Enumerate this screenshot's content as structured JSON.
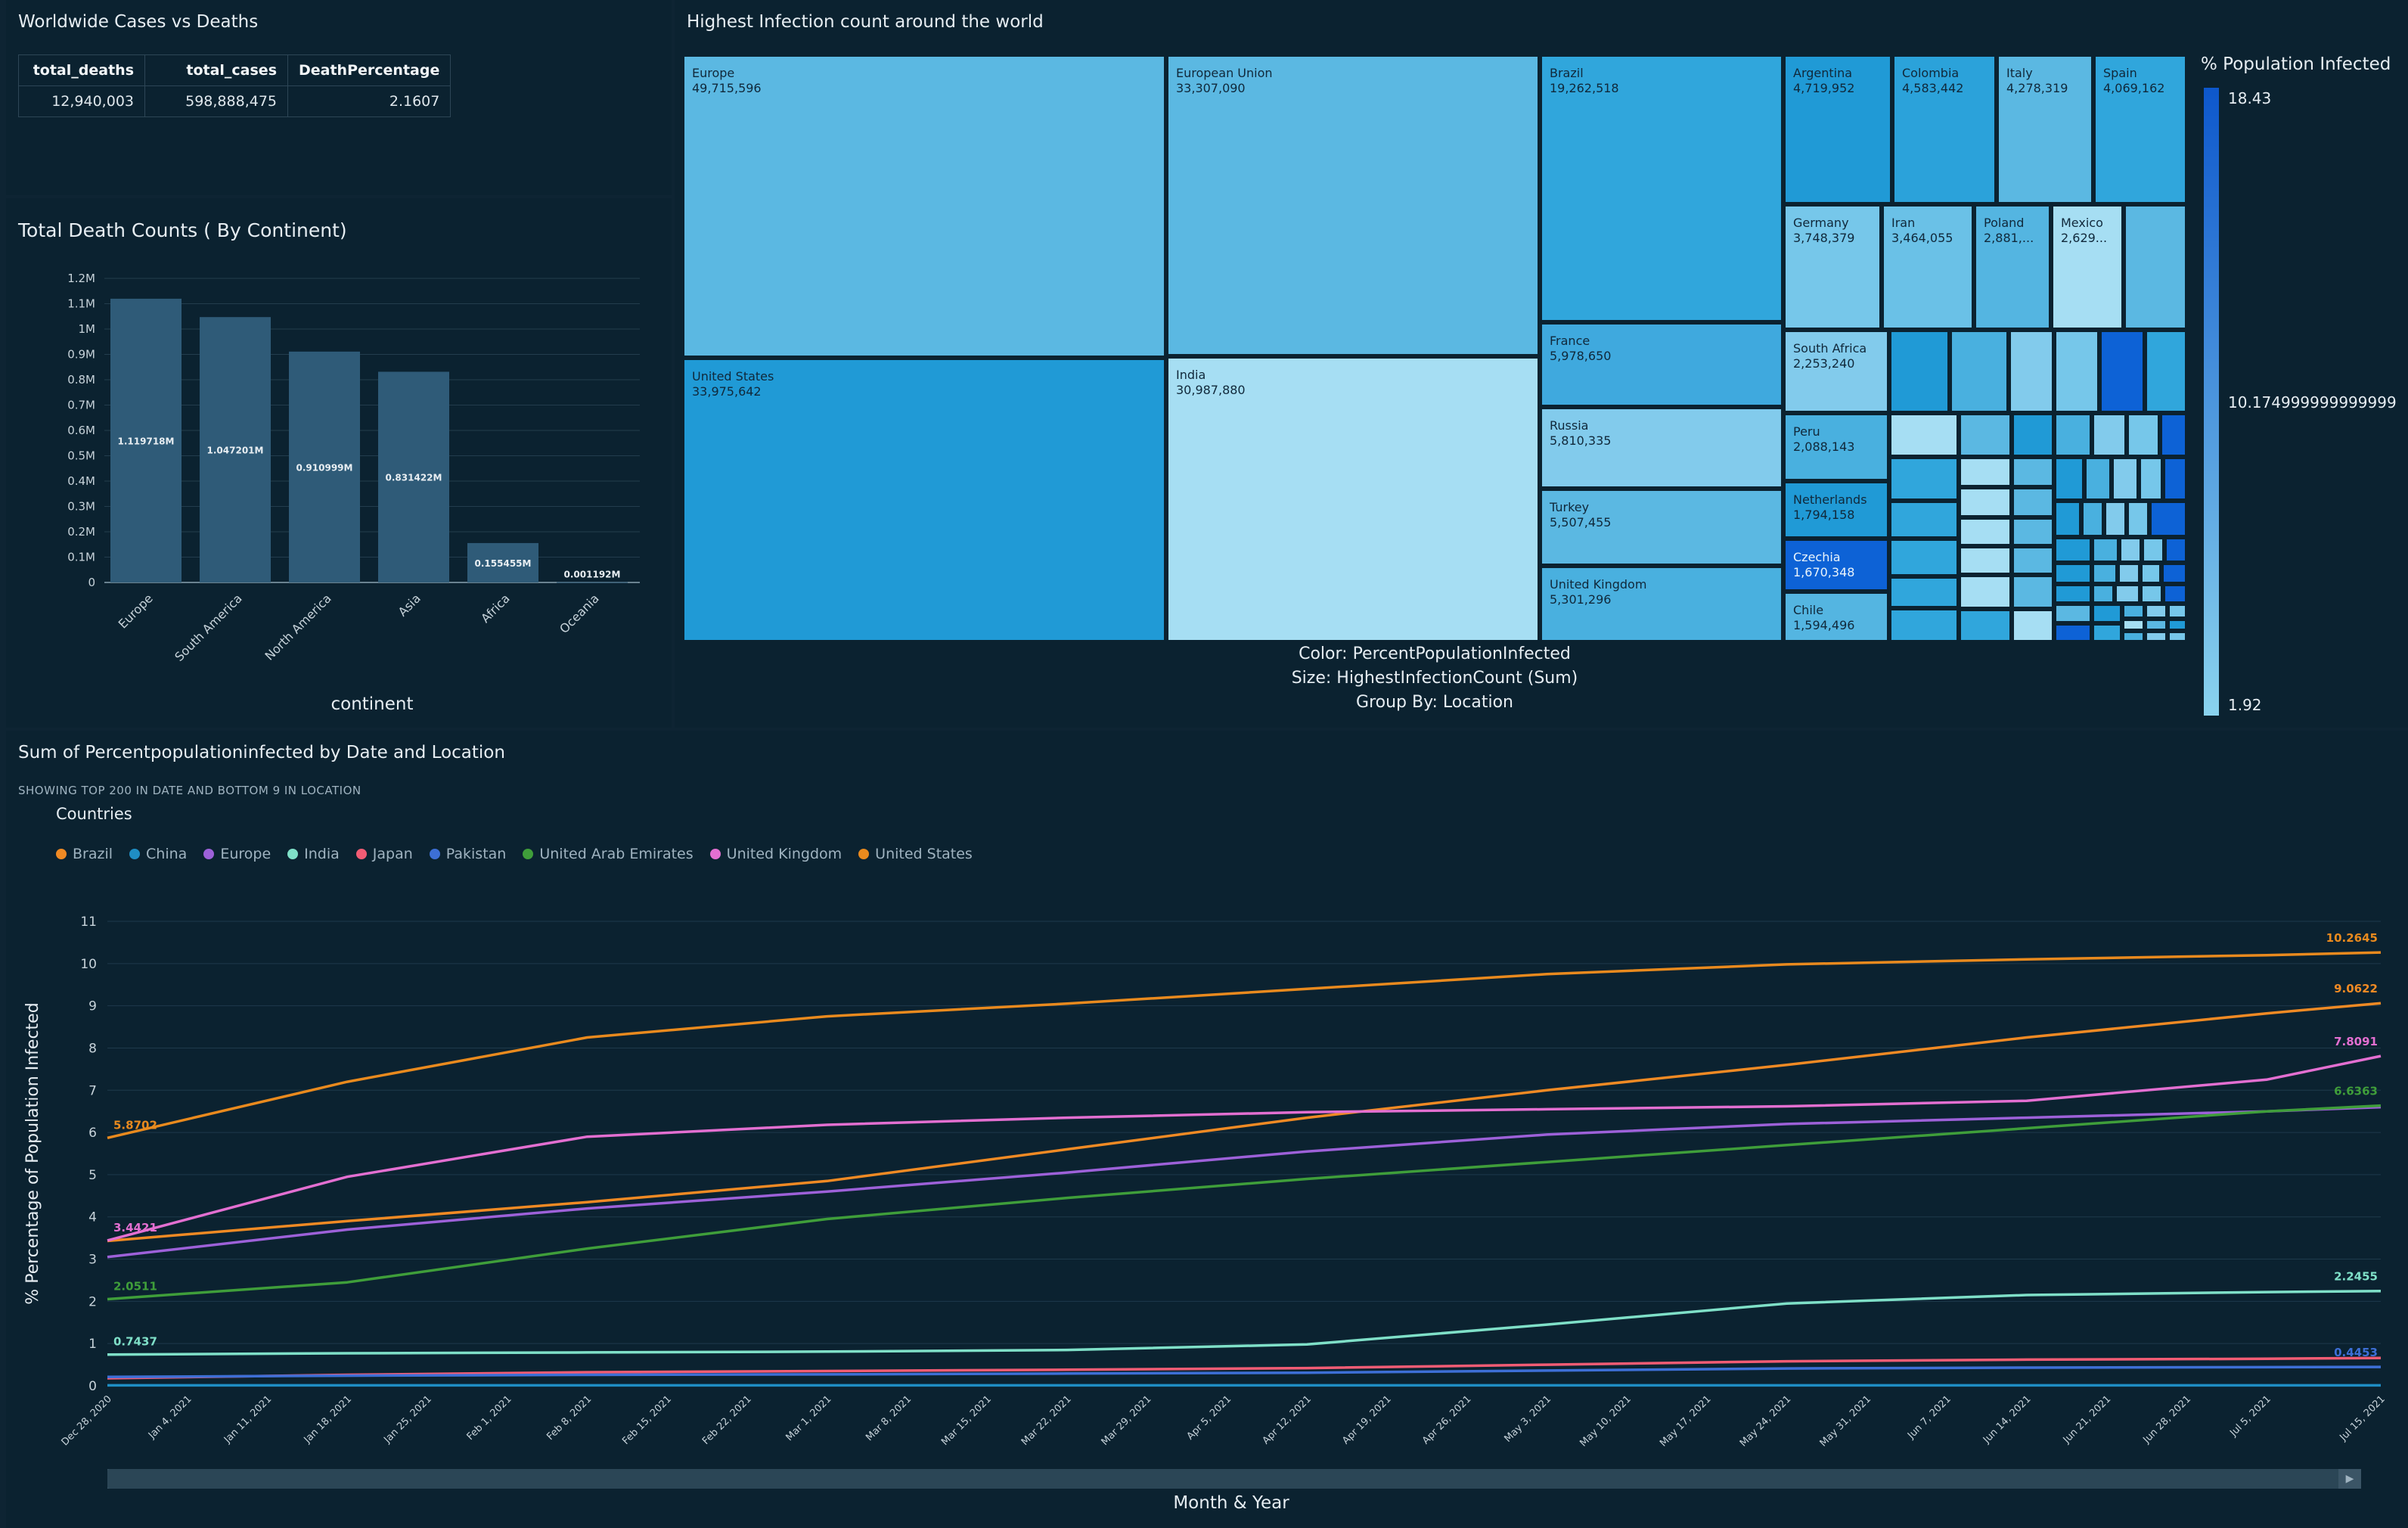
{
  "kpi": {
    "title": "Worldwide Cases vs Deaths",
    "columns": [
      "total_deaths",
      "total_cases",
      "DeathPercentage"
    ],
    "row": [
      "12,940,003",
      "598,888,475",
      "2.1607"
    ]
  },
  "deaths_chart": {
    "title": "Total Death Counts ( By Continent)",
    "xlabel": "continent",
    "y_ticks": [
      "0",
      "0.1M",
      "0.2M",
      "0.3M",
      "0.4M",
      "0.5M",
      "0.6M",
      "0.7M",
      "0.8M",
      "0.9M",
      "1M",
      "1.1M",
      "1.2M"
    ]
  },
  "treemap": {
    "title": "Highest Infection count around the world",
    "legend_title": "% Population Infected",
    "legend_max": "18.43",
    "legend_mid": "10.174999999999999",
    "legend_min": "1.92",
    "foot_color": "Color: PercentPopulationInfected",
    "foot_size": "Size: HighestInfectionCount (Sum)",
    "foot_group": "Group By: Location"
  },
  "line_chart": {
    "title": "Sum of Percentpopulationinfected by Date and Location",
    "subtitle": "SHOWING TOP 200 IN DATE AND BOTTOM 9 IN LOCATION",
    "legend_title": "Countries",
    "xlabel": "Month & Year",
    "ylabel": "% Percentage of Population Infected"
  },
  "chart_data": [
    {
      "type": "bar",
      "title": "Total Death Counts ( By Continent)",
      "xlabel": "continent",
      "ylabel": "",
      "categories": [
        "Europe",
        "South America",
        "North America",
        "Asia",
        "Africa",
        "Oceania"
      ],
      "values": [
        1119718,
        1047201,
        910999,
        831422,
        155455,
        1192
      ],
      "data_labels": [
        "1.119718M",
        "1.047201M",
        "0.910999M",
        "0.831422M",
        "0.155455M",
        "0.001192M"
      ],
      "ylim": [
        0,
        1200000
      ],
      "color": "#2f5b78",
      "grid": true
    },
    {
      "type": "treemap",
      "title": "Highest Infection count around the world",
      "size_field": "HighestInfectionCount (Sum)",
      "color_field": "PercentPopulationInfected",
      "color_range": [
        1.92,
        18.43
      ],
      "items": [
        {
          "name": "Europe",
          "label": "49,715,596",
          "value": 49715596,
          "color": "#5bb8e2"
        },
        {
          "name": "United States",
          "label": "33,975,642",
          "value": 33975642,
          "color": "#209ad6"
        },
        {
          "name": "European Union",
          "label": "33,307,090",
          "value": 33307090,
          "color": "#5bb8e2"
        },
        {
          "name": "India",
          "label": "30,987,880",
          "value": 30987880,
          "color": "#a6def3"
        },
        {
          "name": "Brazil",
          "label": "19,262,518",
          "value": 19262518,
          "color": "#30a6dc"
        },
        {
          "name": "France",
          "label": "5,978,650",
          "value": 5978650,
          "color": "#3fa9de"
        },
        {
          "name": "Russia",
          "label": "5,810,335",
          "value": 5810335,
          "color": "#82cbec"
        },
        {
          "name": "Turkey",
          "label": "5,507,455",
          "value": 5507455,
          "color": "#5bb8e2"
        },
        {
          "name": "United Kingdom",
          "label": "5,301,296",
          "value": 5301296,
          "color": "#49b0df"
        },
        {
          "name": "Argentina",
          "label": "4,719,952",
          "value": 4719952,
          "color": "#209ad6"
        },
        {
          "name": "Colombia",
          "label": "4,583,442",
          "value": 4583442,
          "color": "#2ba2da"
        },
        {
          "name": "Italy",
          "label": "4,278,319",
          "value": 4278319,
          "color": "#5bb8e2"
        },
        {
          "name": "Spain",
          "label": "4,069,162",
          "value": 4069162,
          "color": "#30a6dc"
        },
        {
          "name": "Germany",
          "label": "3,748,379",
          "value": 3748379,
          "color": "#76c7ea"
        },
        {
          "name": "Iran",
          "label": "3,464,055",
          "value": 3464055,
          "color": "#6ac1e7"
        },
        {
          "name": "Poland",
          "label": "2,881,...",
          "value": 2881000,
          "color": "#54b5e1"
        },
        {
          "name": "Mexico",
          "label": "2,629...",
          "value": 2629000,
          "color": "#a6def3"
        },
        {
          "name": "South Africa",
          "label": "2,253,240",
          "value": 2253240,
          "color": "#82cbec"
        },
        {
          "name": "Peru",
          "label": "2,088,143",
          "value": 2088143,
          "color": "#49b0df"
        },
        {
          "name": "Netherlands",
          "label": "1,794,158",
          "value": 1794158,
          "color": "#209ad6"
        },
        {
          "name": "Czechia",
          "label": "1,670,348",
          "value": 1670348,
          "color": "#0d62d6"
        },
        {
          "name": "Chile",
          "label": "1,594,496",
          "value": 1594496,
          "color": "#54b5e1"
        }
      ]
    },
    {
      "type": "line",
      "title": "Sum of Percentpopulationinfected by Date and Location",
      "xlabel": "Month & Year",
      "ylabel": "% Percentage of Population Infected",
      "x_start": "Dec 28, 2020",
      "x_end": "Jul 15, 2021",
      "x_ticks": [
        "Dec 28, 2020",
        "Jan 4, 2021",
        "Jan 11, 2021",
        "Jan 18, 2021",
        "Jan 25, 2021",
        "Feb 1, 2021",
        "Feb 8, 2021",
        "Feb 15, 2021",
        "Feb 22, 2021",
        "Mar 1, 2021",
        "Mar 8, 2021",
        "Mar 15, 2021",
        "Mar 22, 2021",
        "Mar 29, 2021",
        "Apr 5, 2021",
        "Apr 12, 2021",
        "Apr 19, 2021",
        "Apr 26, 2021",
        "May 3, 2021",
        "May 10, 2021",
        "May 17, 2021",
        "May 24, 2021",
        "May 31, 2021",
        "Jun 7, 2021",
        "Jun 14, 2021",
        "Jun 21, 2021",
        "Jun 28, 2021",
        "Jul 5, 2021",
        "Jul 15, 2021"
      ],
      "y_ticks": [
        "0",
        "1",
        "2",
        "3",
        "4",
        "5",
        "6",
        "7",
        "8",
        "9",
        "10",
        "11"
      ],
      "ylim": [
        0,
        11
      ],
      "grid": true,
      "legend_position": "top-left",
      "x_dates": [
        "Dec 28, 2020",
        "Jan 18, 2021",
        "Feb 8, 2021",
        "Mar 1, 2021",
        "Mar 22, 2021",
        "Apr 12, 2021",
        "May 3, 2021",
        "May 24, 2021",
        "Jun 14, 2021",
        "Jul 5, 2021",
        "Jul 15, 2021"
      ],
      "series": [
        {
          "name": "Brazil",
          "color": "#f08a24",
          "values": [
            3.43,
            3.9,
            4.35,
            4.85,
            5.6,
            6.35,
            7.0,
            7.6,
            8.25,
            8.82,
            9.0622
          ],
          "start_label": "",
          "end_label": "9.0622"
        },
        {
          "name": "China",
          "color": "#1f8ec4",
          "values": [
            0.01,
            0.01,
            0.01,
            0.01,
            0.01,
            0.01,
            0.01,
            0.01,
            0.01,
            0.01,
            0.01
          ],
          "start_label": "",
          "end_label": ""
        },
        {
          "name": "Europe",
          "color": "#9d61d9",
          "values": [
            3.05,
            3.7,
            4.2,
            4.6,
            5.05,
            5.55,
            5.95,
            6.2,
            6.35,
            6.5,
            6.6
          ],
          "start_label": "",
          "end_label": ""
        },
        {
          "name": "India",
          "color": "#7fe0c8",
          "values": [
            0.74,
            0.77,
            0.79,
            0.81,
            0.85,
            0.98,
            1.45,
            1.95,
            2.15,
            2.22,
            2.2455
          ],
          "start_label": "0.7437",
          "end_label": "2.2455"
        },
        {
          "name": "Japan",
          "color": "#f25c74",
          "values": [
            0.18,
            0.26,
            0.32,
            0.35,
            0.38,
            0.42,
            0.5,
            0.58,
            0.62,
            0.64,
            0.66
          ],
          "start_label": "",
          "end_label": ""
        },
        {
          "name": "Pakistan",
          "color": "#3d6fd6",
          "values": [
            0.21,
            0.24,
            0.26,
            0.27,
            0.29,
            0.31,
            0.36,
            0.41,
            0.43,
            0.44,
            0.4453
          ],
          "start_label": "",
          "end_label": "0.4453"
        },
        {
          "name": "United Arab Emirates",
          "color": "#3f9e3a",
          "values": [
            2.0511,
            2.45,
            3.25,
            3.95,
            4.45,
            4.9,
            5.3,
            5.7,
            6.1,
            6.5,
            6.6363
          ],
          "start_label": "2.0511",
          "end_label": "6.6363"
        },
        {
          "name": "United Kingdom",
          "color": "#e36fd1",
          "values": [
            3.4421,
            4.95,
            5.9,
            6.18,
            6.35,
            6.48,
            6.55,
            6.62,
            6.75,
            7.25,
            7.8091
          ],
          "start_label": "3.4421",
          "end_label": "7.8091"
        },
        {
          "name": "United States",
          "color": "#e98a1e",
          "values": [
            5.8702,
            7.2,
            8.25,
            8.75,
            9.05,
            9.4,
            9.75,
            9.98,
            10.1,
            10.2,
            10.2645
          ],
          "start_label": "5.8702",
          "end_label": "10.2645"
        }
      ]
    }
  ]
}
